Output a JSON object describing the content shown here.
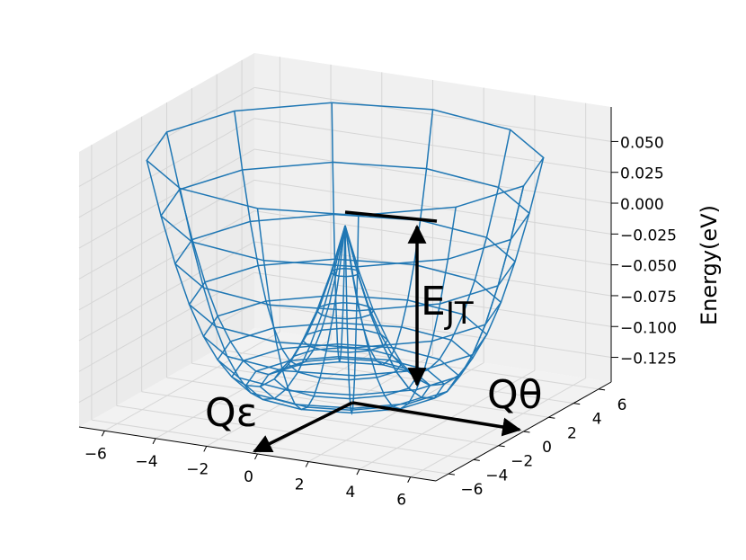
{
  "chart_data": {
    "type": "wireframe3d",
    "zlabel": "Energy(eV)",
    "color": "#1f77b4",
    "r": [
      0,
      0.5,
      1,
      1.5,
      2,
      2.5,
      3,
      3.5,
      4,
      4.5,
      5,
      5.5,
      6,
      6.5,
      7
    ],
    "z": [
      0,
      -0.038,
      -0.069,
      -0.093,
      -0.112,
      -0.124,
      -0.13,
      -0.129,
      -0.122,
      -0.108,
      -0.089,
      -0.063,
      -0.03,
      0.009,
      0.054
    ],
    "theta": [
      0,
      30,
      60,
      90,
      120,
      150,
      180,
      210,
      240,
      270,
      300,
      330,
      360
    ],
    "xlim": [
      -7,
      7
    ],
    "ylim": [
      -7,
      7
    ],
    "zlim": [
      -0.145,
      0.078
    ],
    "xticks": [
      {
        "value": -6,
        "label": "−6"
      },
      {
        "value": -4,
        "label": "−4"
      },
      {
        "value": -2,
        "label": "−2"
      },
      0,
      2,
      4,
      6
    ],
    "yticks": [
      {
        "value": -6,
        "label": "−6"
      },
      {
        "value": -4,
        "label": "−4"
      },
      {
        "value": -2,
        "label": "−2"
      },
      0,
      2,
      4,
      6
    ],
    "zticks": [
      {
        "value": 0.05,
        "label": "0.050"
      },
      {
        "value": 0.025,
        "label": "0.025"
      },
      {
        "value": 0,
        "label": "0.000"
      },
      {
        "value": -0.025,
        "label": "−0.025"
      },
      {
        "value": -0.05,
        "label": "−0.050"
      },
      {
        "value": -0.075,
        "label": "−0.075"
      },
      {
        "value": -0.1,
        "label": "−0.100"
      },
      {
        "value": -0.125,
        "label": "−0.125"
      }
    ],
    "grid": true,
    "annotations": {
      "q_epsilon": "Qε",
      "q_theta": "Qθ",
      "ejt_main": "E",
      "ejt_sub": "JT"
    }
  }
}
